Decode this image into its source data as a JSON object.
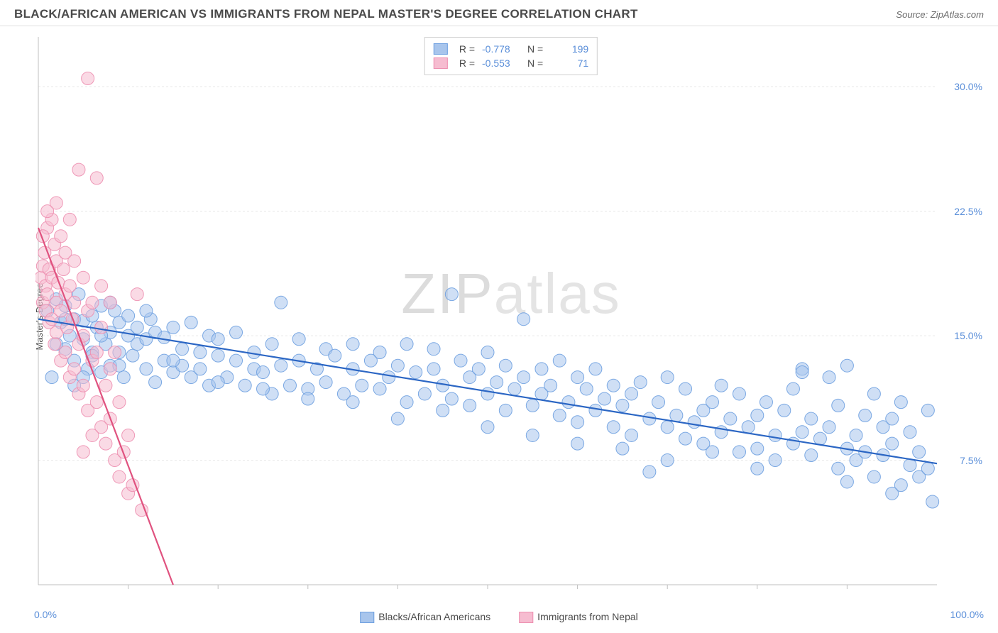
{
  "header": {
    "title": "BLACK/AFRICAN AMERICAN VS IMMIGRANTS FROM NEPAL MASTER'S DEGREE CORRELATION CHART",
    "source_label": "Source:",
    "source_value": "ZipAtlas.com"
  },
  "chart": {
    "type": "scatter",
    "ylabel": "Master's Degree",
    "xlim": [
      0,
      100
    ],
    "ylim": [
      0,
      33
    ],
    "x_ticks": {
      "left": "0.0%",
      "right": "100.0%"
    },
    "y_ticks": [
      {
        "value": 7.5,
        "label": "7.5%"
      },
      {
        "value": 15.0,
        "label": "15.0%"
      },
      {
        "value": 22.5,
        "label": "22.5%"
      },
      {
        "value": 30.0,
        "label": "30.0%"
      }
    ],
    "x_minor_ticks": [
      10,
      20,
      30,
      40,
      50,
      60,
      70,
      80,
      90
    ],
    "grid_color": "#e8e8e8",
    "axis_color": "#bfbfbf",
    "background_color": "#ffffff",
    "marker_radius": 9,
    "marker_opacity": 0.55,
    "marker_stroke_opacity": 0.9,
    "line_width": 2.2,
    "watermark": "ZIPatlas",
    "series": [
      {
        "name": "Blacks/African Americans",
        "color_fill": "#a8c5ec",
        "color_stroke": "#6ea0e0",
        "line_color": "#2b66c4",
        "R": "-0.778",
        "N": "199",
        "trend": {
          "x1": 0,
          "y1": 16.0,
          "x2": 100,
          "y2": 7.3
        },
        "points": [
          [
            1,
            16.5
          ],
          [
            1.5,
            12.5
          ],
          [
            2,
            17.2
          ],
          [
            2.5,
            15.8
          ],
          [
            3,
            14.2
          ],
          [
            3,
            16.8
          ],
          [
            3.5,
            15.0
          ],
          [
            4,
            16.0
          ],
          [
            4,
            13.5
          ],
          [
            4.5,
            17.5
          ],
          [
            5,
            14.8
          ],
          [
            5,
            15.9
          ],
          [
            5.5,
            13.0
          ],
          [
            6,
            16.2
          ],
          [
            6,
            14.0
          ],
          [
            6.5,
            15.5
          ],
          [
            7,
            12.8
          ],
          [
            7,
            16.8
          ],
          [
            7.5,
            14.5
          ],
          [
            8,
            15.2
          ],
          [
            8,
            13.2
          ],
          [
            8.5,
            16.5
          ],
          [
            9,
            14.0
          ],
          [
            9,
            15.8
          ],
          [
            9.5,
            12.5
          ],
          [
            10,
            15.0
          ],
          [
            10,
            16.2
          ],
          [
            10.5,
            13.8
          ],
          [
            11,
            14.5
          ],
          [
            11,
            15.5
          ],
          [
            12,
            13.0
          ],
          [
            12,
            14.8
          ],
          [
            12.5,
            16.0
          ],
          [
            13,
            12.2
          ],
          [
            13,
            15.2
          ],
          [
            14,
            13.5
          ],
          [
            14,
            14.9
          ],
          [
            15,
            12.8
          ],
          [
            15,
            15.5
          ],
          [
            16,
            13.2
          ],
          [
            16,
            14.2
          ],
          [
            17,
            15.8
          ],
          [
            17,
            12.5
          ],
          [
            18,
            14.0
          ],
          [
            18,
            13.0
          ],
          [
            19,
            15.0
          ],
          [
            19,
            12.0
          ],
          [
            20,
            13.8
          ],
          [
            20,
            14.8
          ],
          [
            21,
            12.5
          ],
          [
            22,
            13.5
          ],
          [
            22,
            15.2
          ],
          [
            23,
            12.0
          ],
          [
            24,
            14.0
          ],
          [
            24,
            13.0
          ],
          [
            25,
            12.8
          ],
          [
            26,
            14.5
          ],
          [
            26,
            11.5
          ],
          [
            27,
            17.0
          ],
          [
            27,
            13.2
          ],
          [
            28,
            12.0
          ],
          [
            29,
            13.5
          ],
          [
            29,
            14.8
          ],
          [
            30,
            11.8
          ],
          [
            31,
            13.0
          ],
          [
            32,
            14.2
          ],
          [
            32,
            12.2
          ],
          [
            33,
            13.8
          ],
          [
            34,
            11.5
          ],
          [
            35,
            13.0
          ],
          [
            35,
            14.5
          ],
          [
            36,
            12.0
          ],
          [
            37,
            13.5
          ],
          [
            38,
            11.8
          ],
          [
            38,
            14.0
          ],
          [
            39,
            12.5
          ],
          [
            40,
            13.2
          ],
          [
            41,
            11.0
          ],
          [
            41,
            14.5
          ],
          [
            42,
            12.8
          ],
          [
            43,
            11.5
          ],
          [
            44,
            13.0
          ],
          [
            44,
            14.2
          ],
          [
            45,
            12.0
          ],
          [
            46,
            17.5
          ],
          [
            46,
            11.2
          ],
          [
            47,
            13.5
          ],
          [
            48,
            12.5
          ],
          [
            48,
            10.8
          ],
          [
            49,
            13.0
          ],
          [
            50,
            11.5
          ],
          [
            50,
            14.0
          ],
          [
            51,
            12.2
          ],
          [
            52,
            10.5
          ],
          [
            52,
            13.2
          ],
          [
            53,
            11.8
          ],
          [
            54,
            12.5
          ],
          [
            54,
            16.0
          ],
          [
            55,
            10.8
          ],
          [
            56,
            13.0
          ],
          [
            56,
            11.5
          ],
          [
            57,
            12.0
          ],
          [
            58,
            10.2
          ],
          [
            58,
            13.5
          ],
          [
            59,
            11.0
          ],
          [
            60,
            12.5
          ],
          [
            60,
            9.8
          ],
          [
            61,
            11.8
          ],
          [
            62,
            10.5
          ],
          [
            62,
            13.0
          ],
          [
            63,
            11.2
          ],
          [
            64,
            9.5
          ],
          [
            64,
            12.0
          ],
          [
            65,
            10.8
          ],
          [
            66,
            11.5
          ],
          [
            66,
            9.0
          ],
          [
            67,
            12.2
          ],
          [
            68,
            10.0
          ],
          [
            68,
            6.8
          ],
          [
            69,
            11.0
          ],
          [
            70,
            9.5
          ],
          [
            70,
            12.5
          ],
          [
            71,
            10.2
          ],
          [
            72,
            8.8
          ],
          [
            72,
            11.8
          ],
          [
            73,
            9.8
          ],
          [
            74,
            10.5
          ],
          [
            74,
            8.5
          ],
          [
            75,
            11.0
          ],
          [
            76,
            9.2
          ],
          [
            76,
            12.0
          ],
          [
            77,
            10.0
          ],
          [
            78,
            8.0
          ],
          [
            78,
            11.5
          ],
          [
            79,
            9.5
          ],
          [
            80,
            10.2
          ],
          [
            80,
            8.2
          ],
          [
            81,
            11.0
          ],
          [
            82,
            9.0
          ],
          [
            82,
            7.5
          ],
          [
            83,
            10.5
          ],
          [
            84,
            8.5
          ],
          [
            84,
            11.8
          ],
          [
            85,
            13.0
          ],
          [
            85,
            9.2
          ],
          [
            86,
            7.8
          ],
          [
            86,
            10.0
          ],
          [
            87,
            8.8
          ],
          [
            88,
            12.5
          ],
          [
            88,
            9.5
          ],
          [
            89,
            7.0
          ],
          [
            89,
            10.8
          ],
          [
            90,
            8.2
          ],
          [
            90,
            13.2
          ],
          [
            91,
            9.0
          ],
          [
            91,
            7.5
          ],
          [
            92,
            10.2
          ],
          [
            92,
            8.0
          ],
          [
            93,
            11.5
          ],
          [
            93,
            6.5
          ],
          [
            94,
            9.5
          ],
          [
            94,
            7.8
          ],
          [
            95,
            10.0
          ],
          [
            95,
            8.5
          ],
          [
            96,
            6.0
          ],
          [
            96,
            11.0
          ],
          [
            97,
            7.2
          ],
          [
            97,
            9.2
          ],
          [
            98,
            8.0
          ],
          [
            98,
            6.5
          ],
          [
            99,
            10.5
          ],
          [
            99,
            7.0
          ],
          [
            99.5,
            5.0
          ],
          [
            95,
            5.5
          ],
          [
            90,
            6.2
          ],
          [
            85,
            12.8
          ],
          [
            80,
            7.0
          ],
          [
            75,
            8.0
          ],
          [
            70,
            7.5
          ],
          [
            65,
            8.2
          ],
          [
            60,
            8.5
          ],
          [
            55,
            9.0
          ],
          [
            50,
            9.5
          ],
          [
            45,
            10.5
          ],
          [
            40,
            10.0
          ],
          [
            35,
            11.0
          ],
          [
            30,
            11.2
          ],
          [
            25,
            11.8
          ],
          [
            20,
            12.2
          ],
          [
            15,
            13.5
          ],
          [
            12,
            16.5
          ],
          [
            8,
            17.0
          ],
          [
            6,
            13.8
          ],
          [
            4,
            12.0
          ],
          [
            2,
            14.5
          ],
          [
            3,
            16.0
          ],
          [
            5,
            12.5
          ],
          [
            7,
            15.0
          ],
          [
            9,
            13.2
          ]
        ]
      },
      {
        "name": "Immigrants from Nepal",
        "color_fill": "#f6bcd0",
        "color_stroke": "#ed8fb0",
        "line_color": "#e0527f",
        "R": "-0.553",
        "N": "71",
        "trend": {
          "x1": 0,
          "y1": 21.5,
          "x2": 15,
          "y2": 0
        },
        "points": [
          [
            0.3,
            18.5
          ],
          [
            0.5,
            19.2
          ],
          [
            0.5,
            17.0
          ],
          [
            0.7,
            20.0
          ],
          [
            0.8,
            18.0
          ],
          [
            0.8,
            16.5
          ],
          [
            1.0,
            21.5
          ],
          [
            1.0,
            17.5
          ],
          [
            1.2,
            19.0
          ],
          [
            1.2,
            15.8
          ],
          [
            1.5,
            22.0
          ],
          [
            1.5,
            16.0
          ],
          [
            1.5,
            18.5
          ],
          [
            1.8,
            20.5
          ],
          [
            1.8,
            14.5
          ],
          [
            2.0,
            19.5
          ],
          [
            2.0,
            17.0
          ],
          [
            2.0,
            15.2
          ],
          [
            2.2,
            18.2
          ],
          [
            2.5,
            21.0
          ],
          [
            2.5,
            13.5
          ],
          [
            2.5,
            16.5
          ],
          [
            2.8,
            19.0
          ],
          [
            3.0,
            17.5
          ],
          [
            3.0,
            14.0
          ],
          [
            3.0,
            20.0
          ],
          [
            3.2,
            15.5
          ],
          [
            3.5,
            18.0
          ],
          [
            3.5,
            12.5
          ],
          [
            3.8,
            16.0
          ],
          [
            4.0,
            19.5
          ],
          [
            4.0,
            13.0
          ],
          [
            4.0,
            17.0
          ],
          [
            4.5,
            14.5
          ],
          [
            4.5,
            11.5
          ],
          [
            5.0,
            15.0
          ],
          [
            5.0,
            18.5
          ],
          [
            5.0,
            12.0
          ],
          [
            5.5,
            16.5
          ],
          [
            5.5,
            10.5
          ],
          [
            6.0,
            13.5
          ],
          [
            6.0,
            17.0
          ],
          [
            6.5,
            11.0
          ],
          [
            6.5,
            14.0
          ],
          [
            7.0,
            9.5
          ],
          [
            7.0,
            15.5
          ],
          [
            7.5,
            12.0
          ],
          [
            7.5,
            8.5
          ],
          [
            8.0,
            13.0
          ],
          [
            8.0,
            10.0
          ],
          [
            8.5,
            7.5
          ],
          [
            8.5,
            14.0
          ],
          [
            9.0,
            11.0
          ],
          [
            9.0,
            6.5
          ],
          [
            9.5,
            8.0
          ],
          [
            10.0,
            5.5
          ],
          [
            10.0,
            9.0
          ],
          [
            10.5,
            6.0
          ],
          [
            11.0,
            17.5
          ],
          [
            11.5,
            4.5
          ],
          [
            4.5,
            25.0
          ],
          [
            5.5,
            30.5
          ],
          [
            6.5,
            24.5
          ],
          [
            1.0,
            22.5
          ],
          [
            2.0,
            23.0
          ],
          [
            0.5,
            21.0
          ],
          [
            3.5,
            22.0
          ],
          [
            5.0,
            8.0
          ],
          [
            6.0,
            9.0
          ],
          [
            7.0,
            18.0
          ],
          [
            8.0,
            17.0
          ]
        ]
      }
    ],
    "bottom_legend": [
      {
        "label": "Blacks/African Americans",
        "fill": "#a8c5ec",
        "stroke": "#6ea0e0"
      },
      {
        "label": "Immigrants from Nepal",
        "fill": "#f6bcd0",
        "stroke": "#ed8fb0"
      }
    ]
  }
}
